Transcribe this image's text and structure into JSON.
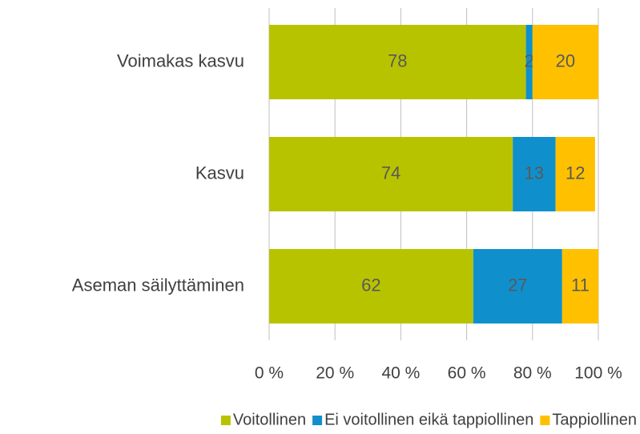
{
  "chart_data": {
    "type": "stacked-bar-horizontal",
    "categories": [
      "Voimakas kasvu",
      "Kasvu",
      "Aseman säilyttäminen"
    ],
    "series": [
      {
        "name": "Voitollinen",
        "color": "#b8c300",
        "values": [
          78,
          74,
          62
        ]
      },
      {
        "name": "Ei voitollinen eikä tappiollinen",
        "color": "#0f90cc",
        "values": [
          2,
          13,
          27
        ]
      },
      {
        "name": "Tappiollinen",
        "color": "#ffc000",
        "values": [
          20,
          12,
          11
        ]
      }
    ],
    "xlim": [
      0,
      100
    ],
    "xticks": [
      {
        "value": 0,
        "label": "0 %"
      },
      {
        "value": 20,
        "label": "20 %"
      },
      {
        "value": 40,
        "label": "40 %"
      },
      {
        "value": 60,
        "label": "60 %"
      },
      {
        "value": 80,
        "label": "80 %"
      },
      {
        "value": 100,
        "label": "100 %"
      }
    ],
    "grid": true,
    "legend": "bottom"
  }
}
